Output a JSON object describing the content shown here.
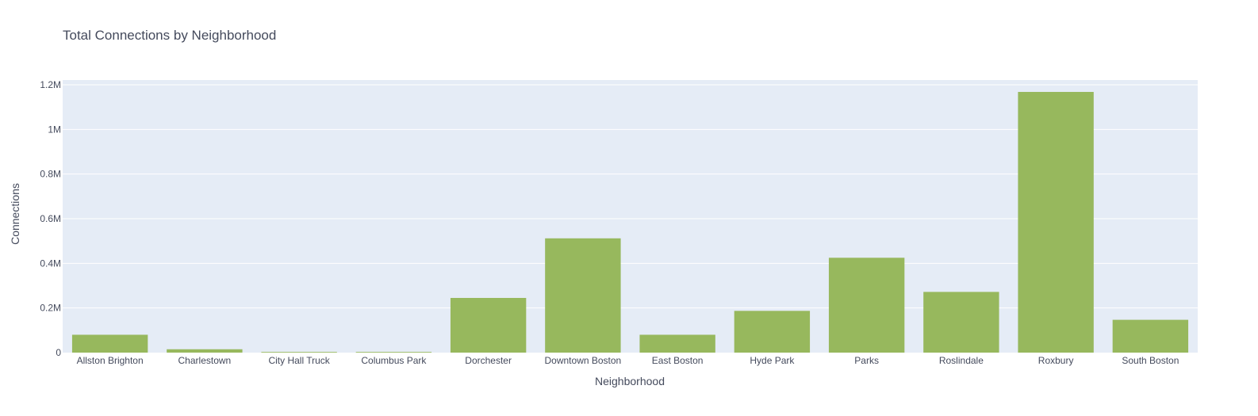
{
  "chart_data": {
    "type": "bar",
    "title": "Total Connections by Neighborhood",
    "xlabel": "Neighborhood",
    "ylabel": "Connections",
    "categories": [
      "Allston Brighton",
      "Charlestown",
      "City Hall Truck",
      "Columbus Park",
      "Dorchester",
      "Downtown Boston",
      "East Boston",
      "Hyde Park",
      "Parks",
      "Roslindale",
      "Roxbury",
      "South Boston"
    ],
    "values": [
      80000,
      15000,
      3000,
      3000,
      245000,
      512000,
      80000,
      187000,
      425000,
      272000,
      1168000,
      147000
    ],
    "ylim": [
      0,
      1200000
    ],
    "yticks": [
      0,
      200000,
      400000,
      600000,
      800000,
      1000000,
      1200000
    ],
    "ytick_labels": [
      "0",
      "0.2M",
      "0.4M",
      "0.6M",
      "0.8M",
      "1M",
      "1.2M"
    ],
    "bar_color": "#97b85d",
    "plot_background": "#e5ecf6",
    "grid": true,
    "legend": "none"
  }
}
